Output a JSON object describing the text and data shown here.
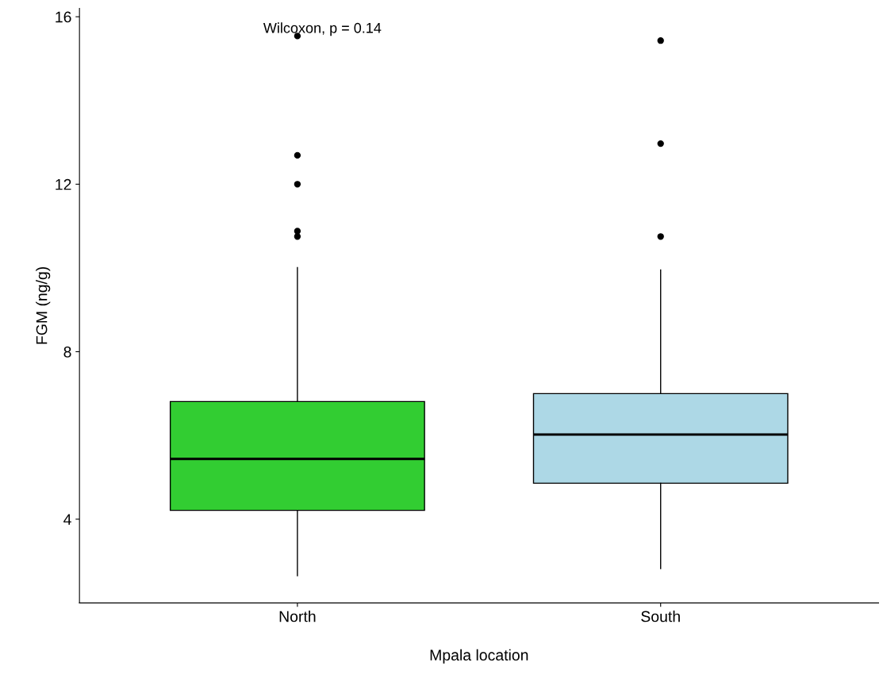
{
  "chart_data": {
    "type": "box",
    "xlabel": "Mpala location",
    "ylabel": "FGM (ng/g)",
    "categories": [
      "North",
      "South"
    ],
    "colors": [
      "#32cd32",
      "#add8e6"
    ],
    "boxes": [
      {
        "low": 2.65,
        "q1": 4.21,
        "median": 5.44,
        "q3": 6.81,
        "high": 10.01,
        "outliers": [
          15.54,
          12.69,
          12.0,
          10.88,
          10.75
        ]
      },
      {
        "low": 2.82,
        "q1": 4.86,
        "median": 6.02,
        "q3": 7.0,
        "high": 9.95,
        "outliers": [
          15.43,
          12.97,
          10.75
        ]
      }
    ],
    "ylim": [
      2.0,
      16.2
    ],
    "yticks": [
      4,
      8,
      12,
      16
    ],
    "grid": false,
    "legend": false,
    "annotations": [
      "Wilcoxon, p = 0.14"
    ]
  }
}
